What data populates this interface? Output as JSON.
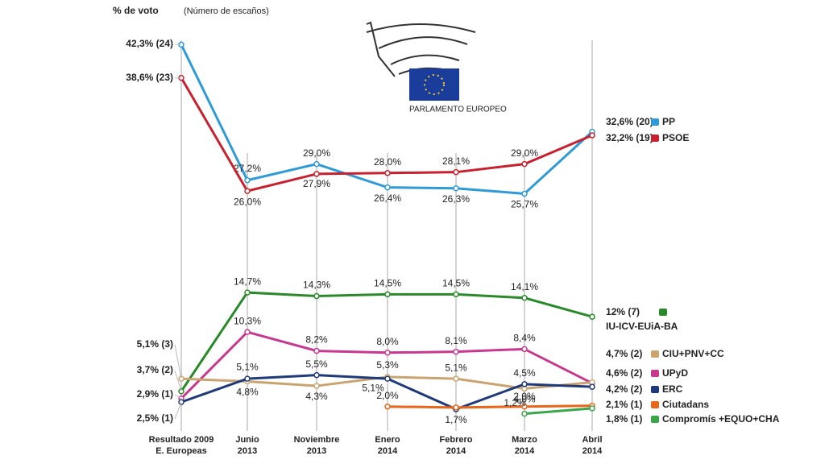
{
  "chart_data": {
    "type": "line",
    "title": "% de voto",
    "subtitle": "(Número de escaños)",
    "logo_text": "PARLAMENTO EUROPEO",
    "categories": [
      [
        "Resultado 2009",
        "E. Europeas"
      ],
      [
        "Junio",
        "2013"
      ],
      [
        "Noviembre",
        "2013"
      ],
      [
        "Enero",
        "2014"
      ],
      [
        "Febrero",
        "2014"
      ],
      [
        "Marzo",
        "2014"
      ],
      [
        "Abril",
        "2014"
      ]
    ],
    "series": [
      {
        "name": "PP",
        "color": "#2e9ad8",
        "values": [
          42.3,
          27.2,
          29.0,
          26.4,
          26.3,
          25.7,
          32.6
        ],
        "value_labels": [
          "42,3% (24)",
          "27,2%",
          "29,0%",
          "26,4%",
          "26,3%",
          "25,7%",
          "32,6% (20)"
        ]
      },
      {
        "name": "PSOE",
        "color": "#c8202e",
        "values": [
          38.6,
          26.0,
          27.9,
          28.0,
          28.1,
          29.0,
          32.2
        ],
        "value_labels": [
          "38,6% (23)",
          "26,0%",
          "27,9%",
          "28,0%",
          "28,1%",
          "29,0%",
          "32,2% (19)"
        ]
      },
      {
        "name": "IU-ICV-EUiA-BA",
        "color": "#2a8a2a",
        "values": [
          3.7,
          14.7,
          14.3,
          14.5,
          14.5,
          14.1,
          12
        ],
        "value_labels": [
          "3,7% (2)",
          "14,7%",
          "14,3%",
          "14,5%",
          "14,5%",
          "14,1%",
          "12% (7)"
        ]
      },
      {
        "name": "UPyD",
        "color": "#c8388f",
        "values": [
          2.9,
          10.3,
          8.2,
          8.0,
          8.1,
          8.4,
          4.6
        ],
        "value_labels": [
          "2,9% (1)",
          "10,3%",
          "8,2%",
          "8,0%",
          "8,1%",
          "8,4%",
          "4,6% (2)"
        ]
      },
      {
        "name": "CIU+PNV+CC",
        "color": "#c9a470",
        "values": [
          5.1,
          4.8,
          4.3,
          5.3,
          5.1,
          4.0,
          4.7
        ],
        "value_labels": [
          "5,1% (3)",
          "4,8%",
          "4,3%",
          "5,3%",
          "5,1%",
          "4,0%",
          "4,7% (2)"
        ]
      },
      {
        "name": "ERC",
        "color": "#1f3a7a",
        "values": [
          2.5,
          5.1,
          5.5,
          5.1,
          1.7,
          4.5,
          4.2
        ],
        "value_labels": [
          "2,5% (1)",
          "5,1%",
          "5,5%",
          "5,1%",
          "1,7%",
          "4,5%",
          "4,2% (2)"
        ]
      },
      {
        "name": "Ciutadans",
        "color": "#e8661a",
        "values": [
          null,
          null,
          null,
          2.0,
          1.9,
          2.0,
          2.1
        ],
        "value_labels": [
          null,
          null,
          null,
          "2,0%",
          null,
          "2,0%",
          "2,1% (1)"
        ]
      },
      {
        "name": "Compromís +EQUO+CHA",
        "color": "#3aa64a",
        "values": [
          null,
          null,
          null,
          null,
          null,
          1.2,
          1.8
        ],
        "value_labels": [
          null,
          null,
          null,
          null,
          null,
          "1,2%",
          "1,8% (1)"
        ]
      }
    ]
  }
}
